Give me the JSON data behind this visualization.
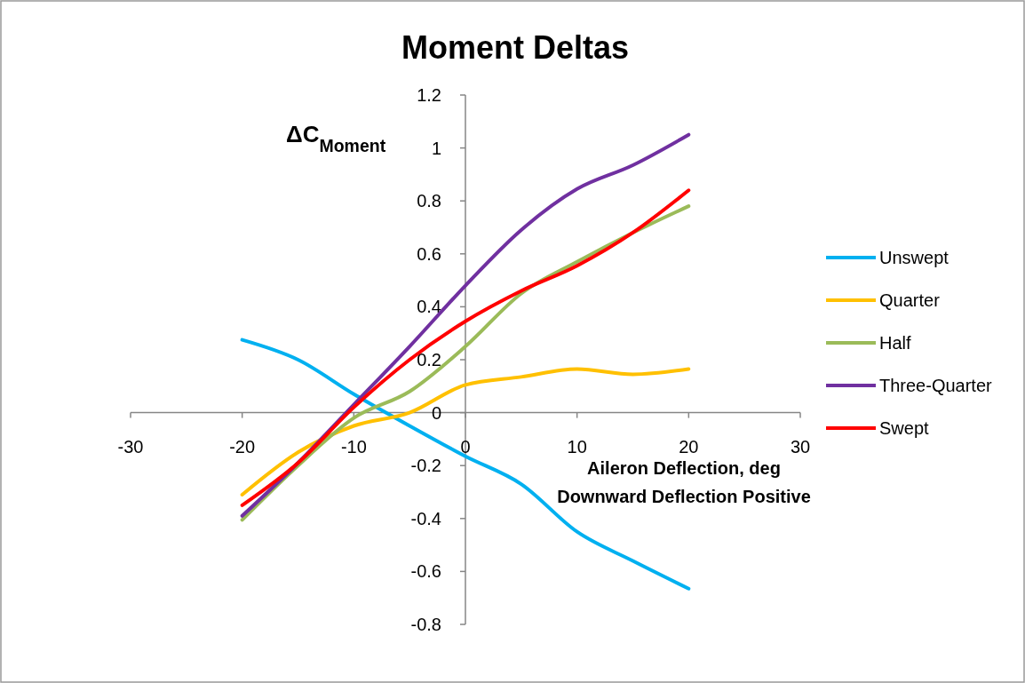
{
  "chart_data": {
    "type": "line",
    "title": "Moment Deltas",
    "xlabel": "Aileron Deflection, deg\nDownward Deflection Positive",
    "ylabel": "ΔC$_{Moment}$",
    "x": [
      -20,
      -15,
      -10,
      -5,
      0,
      5,
      10,
      15,
      20
    ],
    "series": [
      {
        "name": "Unswept",
        "color": "#00b0f0",
        "values": [
          0.275,
          0.2,
          0.07,
          -0.05,
          -0.165,
          -0.27,
          -0.45,
          -0.56,
          -0.665
        ]
      },
      {
        "name": "Quarter",
        "color": "#ffc000",
        "values": [
          -0.31,
          -0.15,
          -0.05,
          0.0,
          0.105,
          0.135,
          0.165,
          0.145,
          0.165
        ]
      },
      {
        "name": "Half",
        "color": "#9bbb59",
        "values": [
          -0.405,
          -0.2,
          -0.02,
          0.08,
          0.25,
          0.45,
          0.57,
          0.68,
          0.78
        ]
      },
      {
        "name": "Three-Quarter",
        "color": "#7030a0",
        "values": [
          -0.39,
          -0.19,
          0.03,
          0.25,
          0.48,
          0.69,
          0.845,
          0.935,
          1.05
        ]
      },
      {
        "name": "Swept",
        "color": "#ff0000",
        "values": [
          -0.35,
          -0.19,
          0.02,
          0.2,
          0.345,
          0.46,
          0.555,
          0.68,
          0.84
        ]
      }
    ],
    "xlim": [
      -30,
      30
    ],
    "xticks": [
      -30,
      -20,
      -10,
      0,
      10,
      20,
      30
    ],
    "ylim": [
      -0.8,
      1.2
    ],
    "yticks": [
      {
        "value": -0.8,
        "label": "-0.8"
      },
      {
        "value": -0.6,
        "label": "-0.6"
      },
      {
        "value": -0.4,
        "label": "-0.4"
      },
      {
        "value": -0.2,
        "label": "-0.2"
      },
      0,
      {
        "value": 0.2,
        "label": "0.2"
      },
      {
        "value": 0.4,
        "label": "0.4"
      },
      {
        "value": 0.6,
        "label": "0.6"
      },
      {
        "value": 0.8,
        "label": "0.8"
      },
      1,
      {
        "value": 1.2,
        "label": "1.2"
      }
    ],
    "grid": false,
    "legend": "right",
    "marker": "none",
    "line_style": "solid"
  }
}
